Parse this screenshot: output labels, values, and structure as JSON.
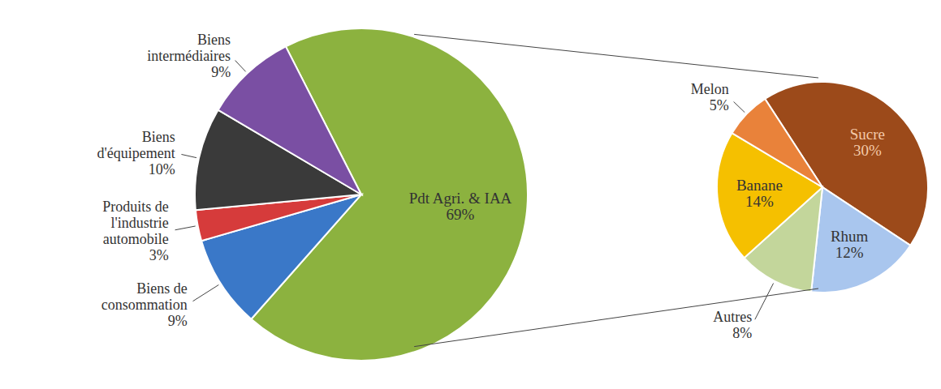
{
  "chart_data": [
    {
      "type": "pie",
      "categories": [
        "Pdt Agri. & IAA",
        "Biens de consommation",
        "Produits de l'industrie automobile",
        "Biens d'équipement",
        "Biens intermédiaires"
      ],
      "values": [
        69,
        9,
        3,
        10,
        9
      ],
      "value_labels": [
        "69%",
        "9%",
        "3%",
        "10%",
        "9%"
      ],
      "colors": [
        "#8cb23f",
        "#3a78c8",
        "#d63b3b",
        "#3a3a3a",
        "#7a4fa3"
      ],
      "data_labels": true
    },
    {
      "type": "pie",
      "categories": [
        "Sucre",
        "Rhum",
        "Autres",
        "Banane",
        "Melon"
      ],
      "values": [
        30,
        12,
        8,
        14,
        5
      ],
      "value_labels": [
        "30%",
        "12%",
        "8%",
        "14%",
        "5%"
      ],
      "colors": [
        "#9c4a1a",
        "#a9c6ee",
        "#c3d69b",
        "#f5c000",
        "#e9823a"
      ],
      "data_labels": true
    }
  ]
}
